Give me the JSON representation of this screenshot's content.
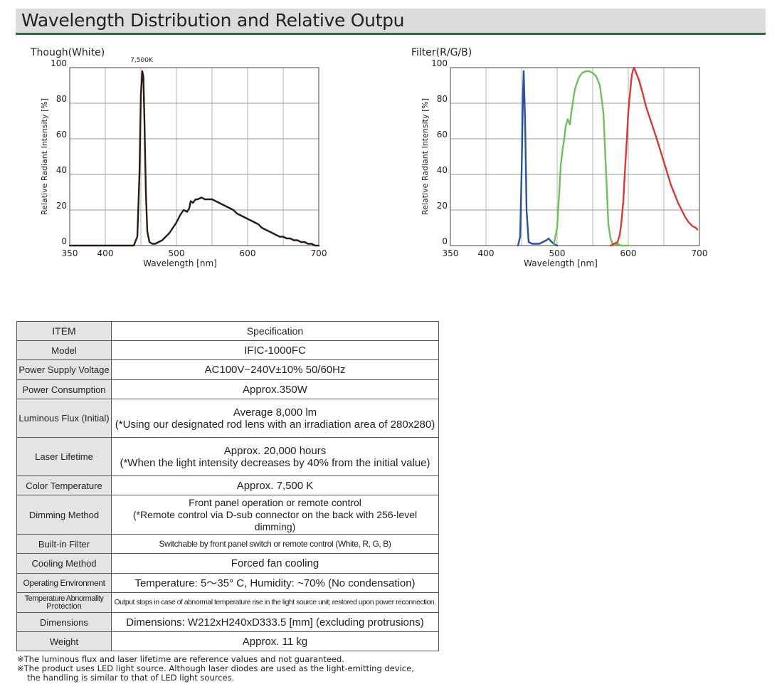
{
  "header": {
    "title": "Wavelength Distribution and Relative Outpu"
  },
  "chart_data": [
    {
      "type": "line",
      "title": "Though(White)",
      "xlabel": "Wavelength [nm]",
      "ylabel": "Relative Radiant Intensity [%]",
      "xlim": [
        350,
        700
      ],
      "ylim": [
        0,
        100
      ],
      "xticks": [
        350,
        400,
        500,
        600,
        700
      ],
      "yticks": [
        0,
        20,
        40,
        60,
        80,
        100
      ],
      "grid": true,
      "annotation": "7,500K",
      "series": [
        {
          "name": "White",
          "color": "#2a1a14",
          "x": [
            350,
            440,
            445,
            448,
            450,
            452,
            453.5,
            455,
            457,
            459,
            462,
            466,
            470,
            480,
            490,
            500,
            505,
            510,
            515,
            518,
            520,
            523,
            527,
            530,
            535,
            540,
            545,
            550,
            555,
            560,
            565,
            570,
            575,
            580,
            585,
            590,
            595,
            600,
            605,
            610,
            615,
            620,
            625,
            630,
            635,
            640,
            645,
            650,
            655,
            660,
            665,
            670,
            675,
            680,
            685,
            690,
            695,
            700
          ],
          "y": [
            0,
            0,
            5,
            40,
            85,
            98,
            95,
            70,
            30,
            8,
            2,
            1,
            1,
            3,
            7,
            13,
            17,
            20,
            19,
            21,
            25,
            24,
            26,
            26,
            27,
            26,
            26,
            26,
            25,
            24,
            23,
            22,
            21,
            20,
            18,
            17,
            16,
            15,
            14,
            13,
            12,
            10,
            9,
            8,
            7,
            6,
            5,
            5,
            4,
            4,
            3,
            3,
            2,
            2,
            1,
            1,
            0,
            0
          ]
        }
      ]
    },
    {
      "type": "line",
      "title": "Filter(R/G/B)",
      "xlabel": "Wavelength [nm]",
      "ylabel": "Relative Radiant Intensity [%]",
      "xlim": [
        350,
        700
      ],
      "ylim": [
        0,
        100
      ],
      "xticks": [
        350,
        400,
        500,
        600,
        700
      ],
      "yticks": [
        0,
        20,
        40,
        60,
        80,
        100
      ],
      "grid": true,
      "series": [
        {
          "name": "B",
          "color": "#2b4f9e",
          "x": [
            445,
            448,
            450,
            452,
            453,
            455,
            457,
            460,
            465,
            470,
            475,
            480,
            485,
            488,
            490,
            495,
            500
          ],
          "y": [
            0,
            5,
            40,
            85,
            98,
            70,
            20,
            2,
            1,
            1,
            1,
            2,
            3,
            4,
            3,
            1,
            0
          ]
        },
        {
          "name": "G",
          "color": "#72c05b",
          "x": [
            495,
            500,
            503,
            505,
            508,
            510,
            512,
            515,
            518,
            520,
            525,
            530,
            535,
            540,
            545,
            550,
            555,
            560,
            565,
            570,
            572,
            575,
            578,
            580,
            585,
            590,
            600
          ],
          "y": [
            0,
            10,
            30,
            45,
            55,
            60,
            67,
            71,
            68,
            75,
            88,
            94,
            97,
            98,
            98,
            97,
            95,
            90,
            75,
            30,
            12,
            4,
            1,
            0,
            1,
            0,
            0
          ]
        },
        {
          "name": "R",
          "color": "#d63a35",
          "x": [
            575,
            580,
            585,
            588,
            590,
            593,
            595,
            598,
            600,
            603,
            605,
            607,
            608,
            610,
            615,
            620,
            625,
            630,
            640,
            650,
            660,
            670,
            675,
            680,
            685,
            690,
            695,
            697
          ],
          "y": [
            0,
            1,
            2,
            6,
            12,
            25,
            40,
            60,
            75,
            88,
            96,
            99,
            100,
            98,
            93,
            86,
            78,
            72,
            60,
            47,
            34,
            24,
            20,
            16,
            13,
            11,
            10,
            9
          ]
        }
      ]
    }
  ],
  "spec_table": {
    "header": {
      "item": "ITEM",
      "value": "Specification"
    },
    "rows": [
      {
        "item": "Model",
        "value": "IFIC-1000FC"
      },
      {
        "item": "Power Supply Voltage",
        "value": "AC100V−240V±10% 50/60Hz"
      },
      {
        "item": "Power Consumption",
        "value": "Approx.350W"
      },
      {
        "item": "Luminous Flux (Initial)",
        "value": "Average 8,000 lm",
        "value2": "(*Using our designated rod lens with an irradiation area of 280x280)"
      },
      {
        "item": "Laser Lifetime",
        "value": "Approx. 20,000 hours",
        "value2": "(*When the light intensity decreases by 40% from the initial value)"
      },
      {
        "item": "Color Temperature",
        "value": "Approx. 7,500 K"
      },
      {
        "item": "Dimming Method",
        "value": "Front panel operation or remote control",
        "value2": "(*Remote control via D-sub connector on the back with 256-level dimming)"
      },
      {
        "item": "Built-in Filter",
        "value": "Switchable by front panel switch or remote control (White, R, G, B)"
      },
      {
        "item": "Cooling Method",
        "value": "Forced fan cooling"
      },
      {
        "item": "Operating Environment",
        "value": "Temperature: 5〜35° C, Humidity: ~70% (No condensation)"
      },
      {
        "item": "Temperature Abnormality",
        "item2": "Protection",
        "value": "Output stops in case of abnormal temperature rise in the light source unit; restored upon power reconnection."
      },
      {
        "item": "Dimensions",
        "value": "Dimensions: W212xH240xD333.5 [mm] (excluding protrusions)"
      },
      {
        "item": "Weight",
        "value": "Approx. 11 kg"
      }
    ]
  },
  "notes": [
    "※The luminous flux and laser lifetime are reference values and not guaranteed.",
    "※The product uses LED light source. Although laser diodes are used as the light-emitting device,",
    "the handling is similar to that of LED light sources."
  ]
}
